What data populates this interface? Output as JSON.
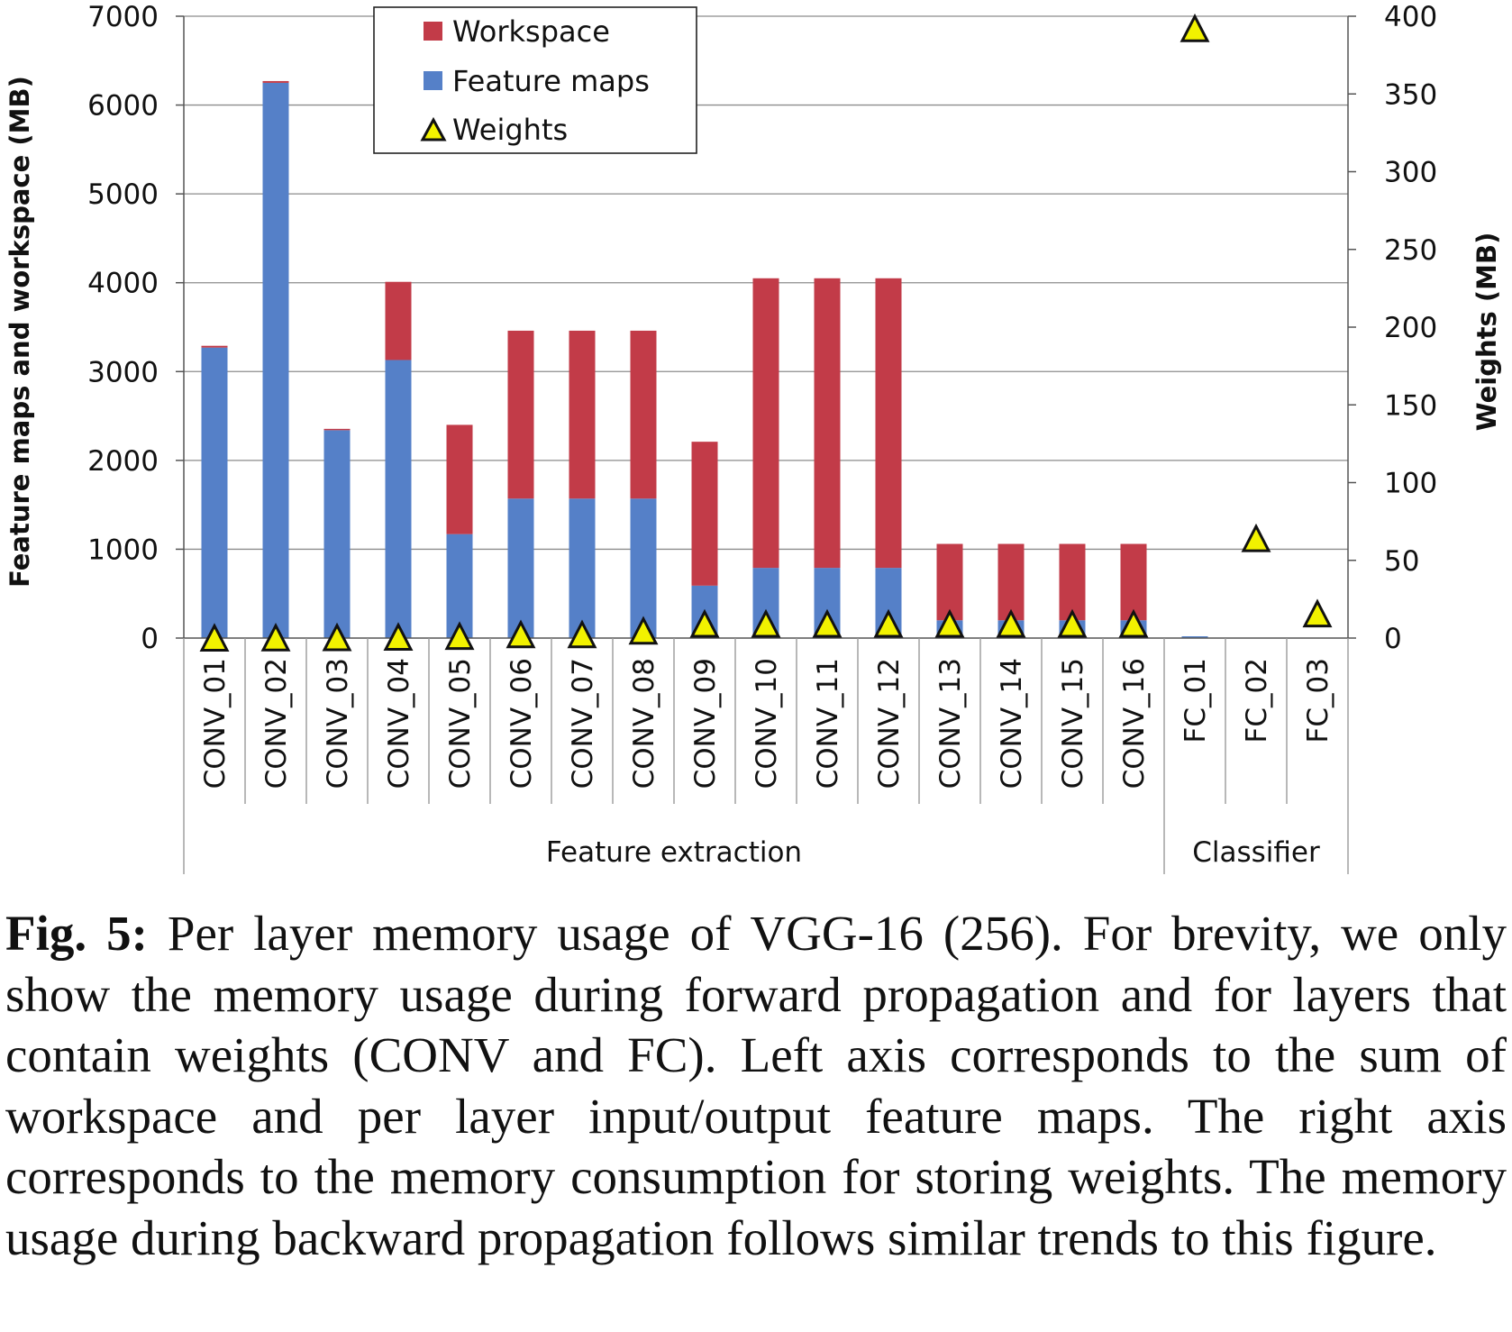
{
  "chart_data": {
    "type": "bar",
    "stacked": true,
    "categories": [
      "CONV_01",
      "CONV_02",
      "CONV_03",
      "CONV_04",
      "CONV_05",
      "CONV_06",
      "CONV_07",
      "CONV_08",
      "CONV_09",
      "CONV_10",
      "CONV_11",
      "CONV_12",
      "CONV_13",
      "CONV_14",
      "CONV_15",
      "CONV_16",
      "FC_01",
      "FC_02",
      "FC_03"
    ],
    "groups": [
      {
        "label": "Feature extraction",
        "from": 0,
        "to": 15
      },
      {
        "label": "Classifier",
        "from": 16,
        "to": 18
      }
    ],
    "series": [
      {
        "name": "Feature maps",
        "axis": "left",
        "color": "#5580c8",
        "values": [
          3270,
          6250,
          2340,
          3130,
          1170,
          1570,
          1570,
          1570,
          590,
          790,
          790,
          790,
          200,
          200,
          200,
          200,
          20,
          5,
          3
        ]
      },
      {
        "name": "Workspace",
        "axis": "left",
        "color": "#c23b48",
        "values": [
          20,
          20,
          15,
          880,
          1230,
          1890,
          1890,
          1890,
          1620,
          3260,
          3260,
          3260,
          860,
          860,
          860,
          860,
          0,
          0,
          0
        ]
      },
      {
        "name": "Weights",
        "axis": "right",
        "marker": "triangle",
        "color": "#f2f200",
        "values": [
          0.01,
          0.14,
          0.28,
          0.56,
          1.1,
          2.2,
          2.2,
          4.5,
          9.0,
          9.0,
          9.0,
          9.0,
          9.0,
          9.0,
          9.0,
          9.0,
          392,
          64,
          15.6
        ]
      }
    ],
    "left_axis": {
      "label": "Feature maps and workspace (MB)",
      "ylim": [
        0,
        7000
      ],
      "ticks": [
        "0",
        "1000",
        "2000",
        "3000",
        "4000",
        "5000",
        "6000",
        "7000"
      ]
    },
    "right_axis": {
      "label": "Weights (MB)",
      "ylim": [
        0,
        400
      ],
      "ticks": [
        "0",
        "50",
        "100",
        "150",
        "200",
        "250",
        "300",
        "350",
        "400"
      ]
    },
    "grid": true,
    "legend": {
      "position": "top-center",
      "entries": [
        "Workspace",
        "Feature maps",
        "Weights"
      ]
    }
  },
  "caption": {
    "label": "Fig. 5:",
    "text": " Per layer memory usage of VGG-16 (256). For brevity, we only show the memory usage during forward propagation and for layers that contain weights (CONV and FC). Left axis corresponds to the sum of workspace and per layer input/output feature maps. The right axis corresponds to the memory consumption for storing weights. The memory usage during backward propagation follows similar trends to this figure."
  }
}
